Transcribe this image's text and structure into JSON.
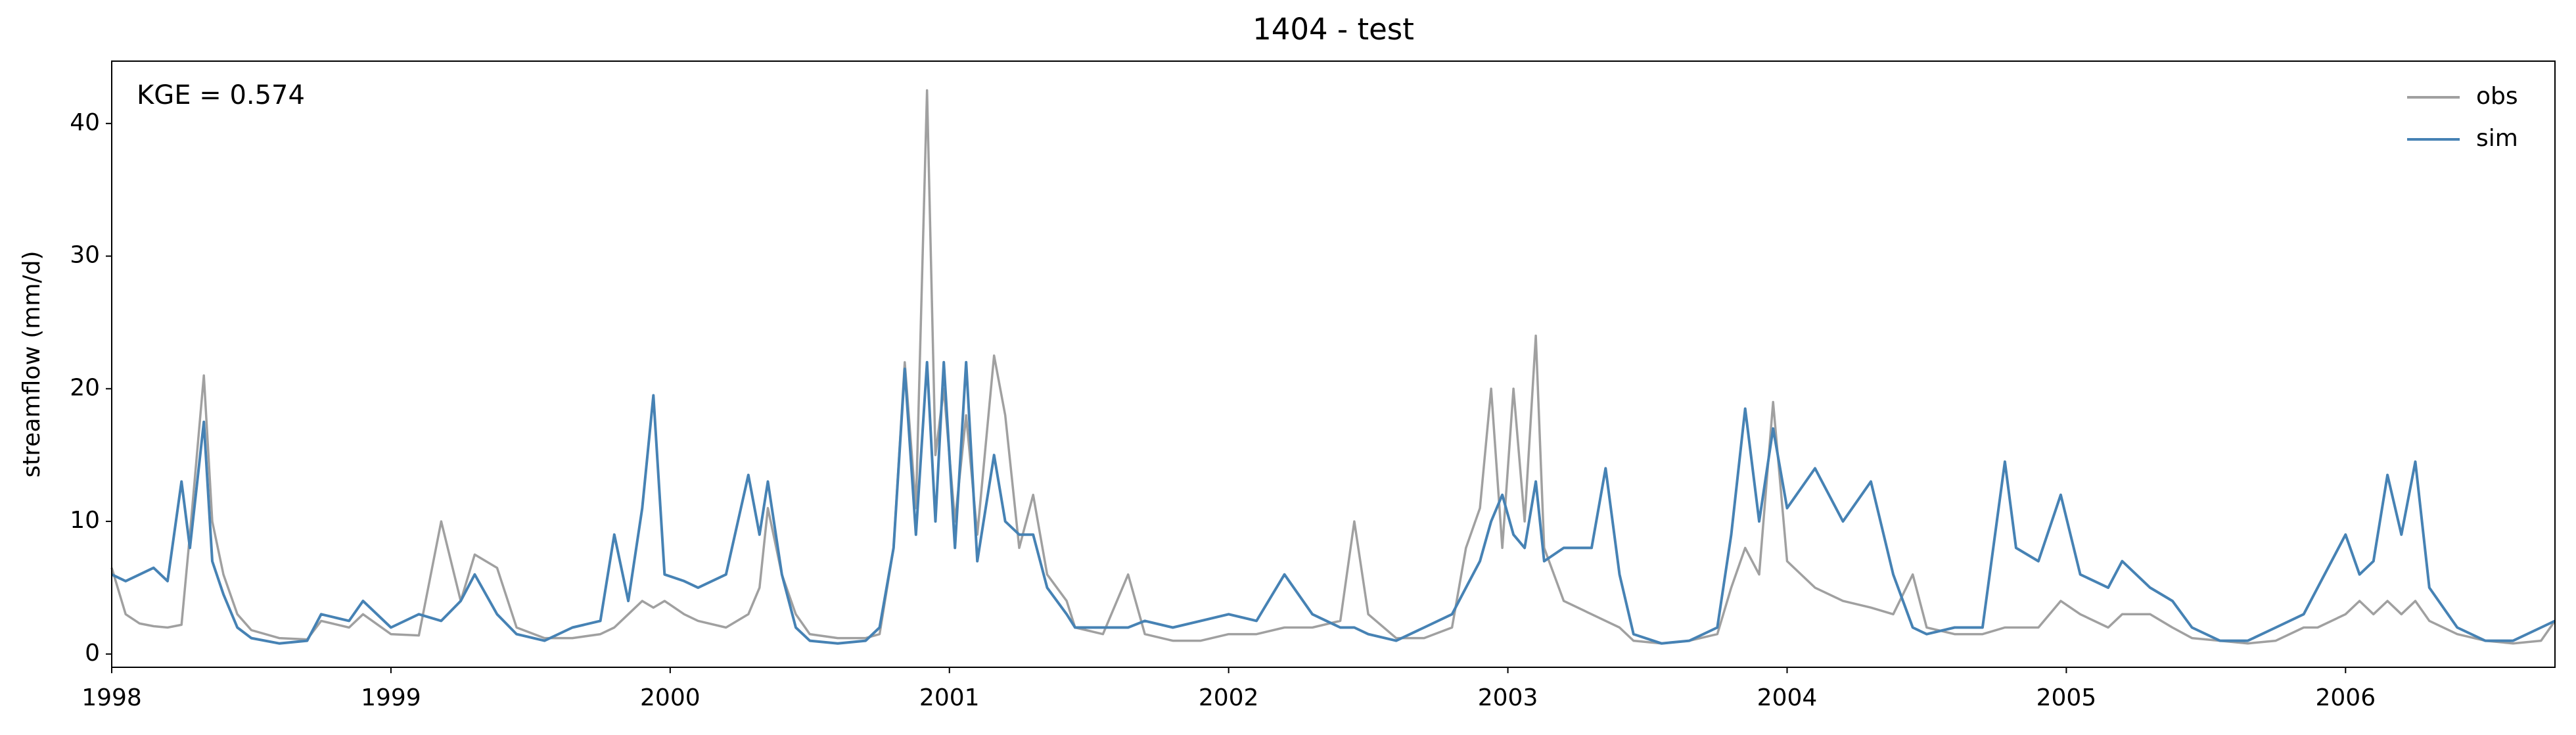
{
  "chart_data": {
    "type": "line",
    "title": "1404 - test",
    "ylabel": "streamflow (mm/d)",
    "annotation": "KGE = 0.574",
    "x": [
      1998.0,
      1998.05,
      1998.1,
      1998.15,
      1998.2,
      1998.25,
      1998.28,
      1998.33,
      1998.36,
      1998.4,
      1998.45,
      1998.5,
      1998.6,
      1998.7,
      1998.75,
      1998.85,
      1998.9,
      1999.0,
      1999.1,
      1999.18,
      1999.25,
      1999.3,
      1999.38,
      1999.45,
      1999.55,
      1999.65,
      1999.75,
      1999.8,
      1999.85,
      1999.9,
      1999.94,
      1999.98,
      2000.05,
      2000.1,
      2000.2,
      2000.28,
      2000.32,
      2000.35,
      2000.4,
      2000.45,
      2000.5,
      2000.6,
      2000.7,
      2000.75,
      2000.8,
      2000.84,
      2000.88,
      2000.92,
      2000.95,
      2000.98,
      2001.02,
      2001.06,
      2001.1,
      2001.16,
      2001.2,
      2001.25,
      2001.3,
      2001.35,
      2001.42,
      2001.45,
      2001.55,
      2001.64,
      2001.7,
      2001.8,
      2001.9,
      2002.0,
      2002.1,
      2002.2,
      2002.3,
      2002.4,
      2002.45,
      2002.5,
      2002.6,
      2002.7,
      2002.8,
      2002.85,
      2002.9,
      2002.94,
      2002.98,
      2003.02,
      2003.06,
      2003.1,
      2003.13,
      2003.2,
      2003.3,
      2003.35,
      2003.4,
      2003.45,
      2003.55,
      2003.65,
      2003.75,
      2003.8,
      2003.85,
      2003.9,
      2003.95,
      2004.0,
      2004.1,
      2004.2,
      2004.3,
      2004.38,
      2004.45,
      2004.5,
      2004.6,
      2004.7,
      2004.78,
      2004.82,
      2004.9,
      2004.98,
      2005.05,
      2005.15,
      2005.2,
      2005.3,
      2005.38,
      2005.45,
      2005.55,
      2005.65,
      2005.75,
      2005.85,
      2005.9,
      2006.0,
      2006.05,
      2006.1,
      2006.15,
      2006.2,
      2006.25,
      2006.3,
      2006.4,
      2006.5,
      2006.6,
      2006.7,
      2006.75
    ],
    "series": [
      {
        "name": "obs",
        "color": "#a0a0a0",
        "values": [
          6.5,
          3,
          2.3,
          2.1,
          2,
          2.2,
          9,
          21,
          10,
          6,
          3,
          1.8,
          1.2,
          1.1,
          2.5,
          2,
          3,
          1.5,
          1.4,
          10,
          4,
          7.5,
          6.5,
          2,
          1.2,
          1.2,
          1.5,
          2,
          3,
          4,
          3.5,
          4,
          3,
          2.5,
          2,
          3,
          5,
          11,
          6,
          3,
          1.5,
          1.2,
          1.2,
          1.5,
          8,
          22,
          11,
          42.5,
          15,
          20,
          10,
          18,
          9,
          22.5,
          18,
          8,
          12,
          6,
          4,
          2,
          1.5,
          6,
          1.5,
          1,
          1,
          1.5,
          1.5,
          2,
          2,
          2.5,
          10,
          3,
          1.2,
          1.2,
          2,
          8,
          11,
          20,
          8,
          20,
          10,
          24,
          8,
          4,
          3,
          2.5,
          2,
          1,
          0.8,
          1,
          1.5,
          5,
          8,
          6,
          19,
          7,
          5,
          4,
          3.5,
          3,
          6,
          2,
          1.5,
          1.5,
          2,
          2,
          2,
          4,
          3,
          2,
          3,
          3,
          2,
          1.2,
          1,
          0.8,
          1,
          2,
          2,
          3,
          4,
          3,
          4,
          3,
          4,
          2.5,
          1.5,
          1,
          0.8,
          1,
          2.5
        ]
      },
      {
        "name": "sim",
        "color": "#4682b4",
        "values": [
          6,
          5.5,
          6,
          6.5,
          5.5,
          13,
          8,
          17.5,
          7,
          4.5,
          2,
          1.2,
          0.8,
          1,
          3,
          2.5,
          4,
          2,
          3,
          2.5,
          4,
          6,
          3,
          1.5,
          1,
          2,
          2.5,
          9,
          4,
          11,
          19.5,
          6,
          5.5,
          5,
          6,
          13.5,
          9,
          13,
          6,
          2,
          1,
          0.8,
          1,
          2,
          8,
          21.5,
          9,
          22,
          10,
          22,
          8,
          22,
          7,
          15,
          10,
          9,
          9,
          5,
          3,
          2,
          2,
          2,
          2.5,
          2,
          2.5,
          3,
          2.5,
          6,
          3,
          2,
          2,
          1.5,
          1,
          2,
          3,
          5,
          7,
          10,
          12,
          9,
          8,
          13,
          7,
          8,
          8,
          14,
          6,
          1.5,
          0.8,
          1,
          2,
          9,
          18.5,
          10,
          17,
          11,
          14,
          10,
          13,
          6,
          2,
          1.5,
          2,
          2,
          14.5,
          8,
          7,
          12,
          6,
          5,
          7,
          5,
          4,
          2,
          1,
          1,
          2,
          3,
          5,
          9,
          6,
          7,
          13.5,
          9,
          14.5,
          5,
          2,
          1,
          1,
          2,
          2.5
        ]
      }
    ],
    "xlim": [
      1998,
      2006.75
    ],
    "ylim": [
      -1,
      44.7
    ],
    "xticks": [
      1998,
      1999,
      2000,
      2001,
      2002,
      2003,
      2004,
      2005,
      2006
    ],
    "yticks": [
      0,
      10,
      20,
      30,
      40
    ],
    "legend": "upper right"
  }
}
